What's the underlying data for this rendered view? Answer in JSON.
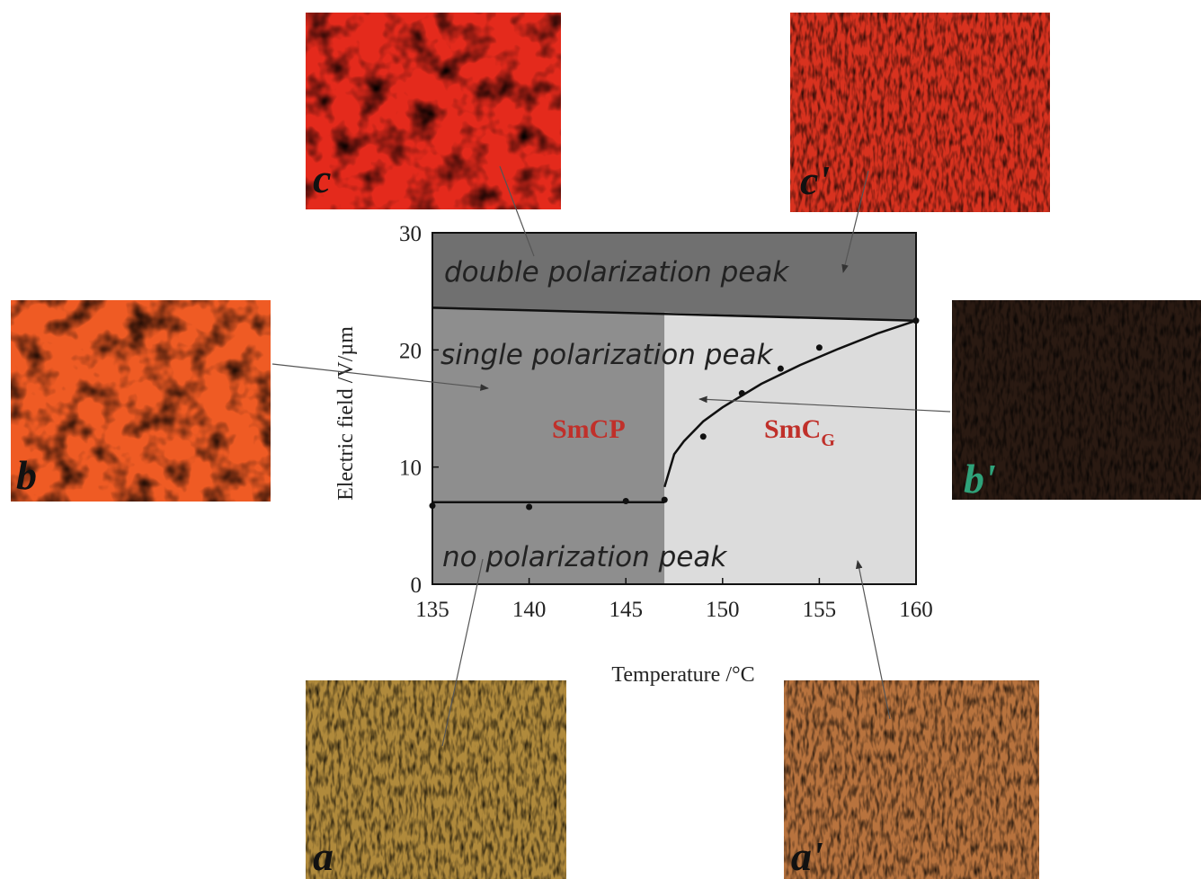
{
  "chart_data": {
    "type": "scatter",
    "xlabel": "Temperature /°C",
    "ylabel": "Electric field /V/µm",
    "xlim": [
      135,
      160
    ],
    "ylim": [
      0,
      30
    ],
    "xticks": [
      135,
      140,
      145,
      150,
      155,
      160
    ],
    "yticks": [
      0,
      10,
      20,
      30
    ],
    "series": [
      {
        "color": "#111111",
        "x": [
          135,
          140,
          145,
          147,
          149,
          151,
          153,
          155,
          160
        ],
        "values": [
          6.7,
          6.6,
          7.1,
          7.2,
          12.6,
          16.3,
          18.4,
          20.2,
          22.5
        ]
      }
    ],
    "lines": [
      {
        "color": "#111111",
        "x": [
          135,
          147
        ],
        "values": [
          7.0,
          7.0
        ]
      },
      {
        "color": "#111111",
        "x": [
          147,
          147.5,
          148,
          149,
          150,
          152,
          154,
          156,
          158,
          160
        ],
        "values": [
          8.3,
          11.1,
          12.2,
          13.9,
          15.1,
          17.1,
          18.7,
          20.1,
          21.4,
          22.5
        ]
      },
      {
        "color": "#111111",
        "x": [
          135,
          160
        ],
        "values": [
          23.6,
          22.5
        ]
      }
    ],
    "regions": [
      {
        "color": "#707070",
        "x": [
          135,
          160,
          160,
          135
        ],
        "values": [
          23.6,
          22.5,
          30,
          30
        ]
      },
      {
        "color": "#8e8e8e",
        "x": [
          135,
          147,
          147,
          135
        ],
        "values": [
          0,
          0,
          23.2,
          23.6
        ]
      },
      {
        "color": "#dcdcdc",
        "x": [
          147,
          160,
          160,
          147
        ],
        "values": [
          0,
          0,
          22.5,
          23.2
        ]
      }
    ],
    "annotations": [
      "double polarization peak",
      "single polarization peak",
      "no polarization peak",
      "SmCP"
    ],
    "phase_g": {
      "text": "SmC",
      "subscript": "G"
    }
  },
  "panels": [
    "c",
    "c'",
    "b",
    "b'",
    "a",
    "a'"
  ]
}
